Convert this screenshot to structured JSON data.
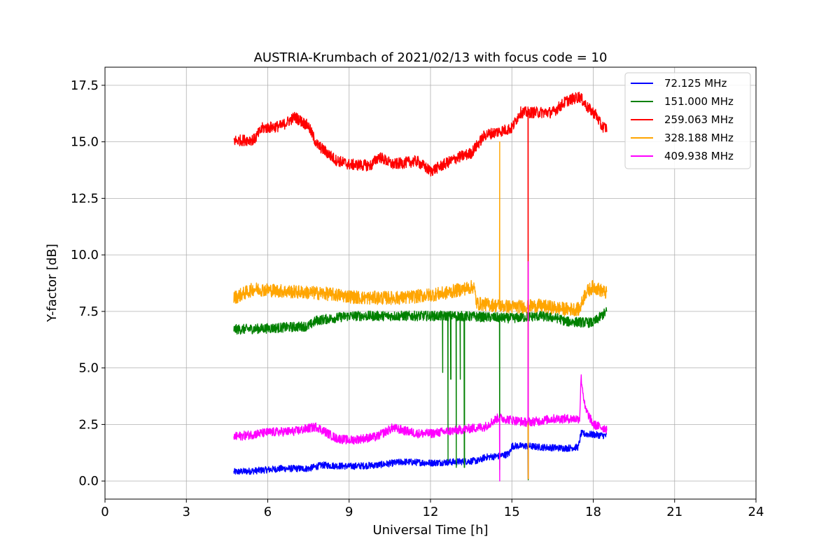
{
  "chart_data": {
    "type": "line",
    "title": "AUSTRIA-Krumbach of 2021/02/13 with focus code = 10",
    "xlabel": "Universal Time [h]",
    "ylabel": "Y-factor [dB]",
    "xlim": [
      0,
      24
    ],
    "ylim": [
      -0.8,
      18.3
    ],
    "xticks": [
      "0",
      "3",
      "6",
      "9",
      "12",
      "15",
      "18",
      "21",
      "24"
    ],
    "yticks": [
      "0.0",
      "2.5",
      "5.0",
      "7.5",
      "10.0",
      "12.5",
      "15.0",
      "17.5"
    ],
    "grid": true,
    "legend_position": "top-right",
    "series": [
      {
        "name": "  72.125 MHz",
        "color": "#0000ff",
        "noise": 0.15,
        "points": [
          [
            4.75,
            0.4
          ],
          [
            5.5,
            0.45
          ],
          [
            6.5,
            0.55
          ],
          [
            7.5,
            0.55
          ],
          [
            8,
            0.7
          ],
          [
            9,
            0.65
          ],
          [
            10,
            0.7
          ],
          [
            11,
            0.85
          ],
          [
            12,
            0.8
          ],
          [
            13,
            0.85
          ],
          [
            13.8,
            0.9
          ],
          [
            14,
            1.05
          ],
          [
            14.5,
            1.1
          ],
          [
            14.9,
            1.2
          ],
          [
            15,
            1.55
          ],
          [
            15.6,
            1.55
          ],
          [
            16,
            1.5
          ],
          [
            17,
            1.45
          ],
          [
            17.45,
            1.5
          ],
          [
            17.55,
            2.1
          ],
          [
            18,
            2.05
          ],
          [
            18.5,
            2.0
          ]
        ],
        "spikes": [
          [
            15.6,
            0.1
          ]
        ]
      },
      {
        "name": "151.000 MHz",
        "color": "#008000",
        "noise": 0.22,
        "points": [
          [
            4.75,
            6.7
          ],
          [
            6,
            6.75
          ],
          [
            7.5,
            6.85
          ],
          [
            7.8,
            7.1
          ],
          [
            9,
            7.3
          ],
          [
            10,
            7.3
          ],
          [
            11,
            7.3
          ],
          [
            12,
            7.3
          ],
          [
            13,
            7.3
          ],
          [
            14,
            7.25
          ],
          [
            15,
            7.2
          ],
          [
            16,
            7.3
          ],
          [
            16.7,
            7.2
          ],
          [
            17,
            7.05
          ],
          [
            18,
            7.0
          ],
          [
            18.5,
            7.5
          ]
        ],
        "spikes": [
          [
            12.65,
            0.9
          ],
          [
            12.75,
            4.5
          ],
          [
            12.95,
            0.6
          ],
          [
            13.1,
            4.5
          ],
          [
            13.25,
            0.6
          ],
          [
            14.55,
            0.5
          ],
          [
            15.6,
            0.05
          ],
          [
            12.45,
            4.8
          ]
        ]
      },
      {
        "name": "259.063 MHz",
        "color": "#ff0000",
        "noise": 0.25,
        "points": [
          [
            4.75,
            15.05
          ],
          [
            5.5,
            15.1
          ],
          [
            5.8,
            15.6
          ],
          [
            6.5,
            15.7
          ],
          [
            7,
            16.1
          ],
          [
            7.5,
            15.7
          ],
          [
            7.8,
            14.9
          ],
          [
            8.5,
            14.2
          ],
          [
            9,
            14.0
          ],
          [
            9.8,
            13.95
          ],
          [
            10.1,
            14.35
          ],
          [
            10.6,
            14.0
          ],
          [
            11.5,
            14.15
          ],
          [
            12,
            13.7
          ],
          [
            13,
            14.3
          ],
          [
            13.5,
            14.5
          ],
          [
            14,
            15.3
          ],
          [
            15,
            15.6
          ],
          [
            15.3,
            16.3
          ],
          [
            16.5,
            16.3
          ],
          [
            17,
            16.8
          ],
          [
            17.5,
            17.0
          ],
          [
            17.8,
            16.5
          ],
          [
            18.1,
            16.2
          ],
          [
            18.3,
            15.7
          ],
          [
            18.5,
            15.6
          ]
        ],
        "spikes": [
          [
            15.6,
            0.1
          ]
        ]
      },
      {
        "name": "328.188 MHz",
        "color": "#ffa500",
        "noise": 0.3,
        "points": [
          [
            4.75,
            8.1
          ],
          [
            5.5,
            8.5
          ],
          [
            6.5,
            8.4
          ],
          [
            8,
            8.3
          ],
          [
            9.5,
            8.1
          ],
          [
            11,
            8.1
          ],
          [
            12.5,
            8.3
          ],
          [
            13.6,
            8.6
          ],
          [
            13.7,
            7.85
          ],
          [
            15,
            7.7
          ],
          [
            16,
            7.75
          ],
          [
            17,
            7.6
          ],
          [
            17.5,
            7.6
          ],
          [
            17.7,
            8.3
          ],
          [
            18,
            8.6
          ],
          [
            18.5,
            8.3
          ]
        ],
        "spikes": [
          [
            14.55,
            15.0
          ],
          [
            15.6,
            0.1
          ]
        ]
      },
      {
        "name": "409.938 MHz",
        "color": "#ff00ff",
        "noise": 0.2,
        "points": [
          [
            4.75,
            1.95
          ],
          [
            6,
            2.15
          ],
          [
            7,
            2.2
          ],
          [
            7.8,
            2.4
          ],
          [
            8.5,
            1.9
          ],
          [
            9,
            1.8
          ],
          [
            10,
            1.95
          ],
          [
            10.6,
            2.35
          ],
          [
            11.5,
            2.1
          ],
          [
            12,
            2.1
          ],
          [
            13,
            2.25
          ],
          [
            14,
            2.4
          ],
          [
            14.5,
            2.8
          ],
          [
            15.5,
            2.6
          ],
          [
            16,
            2.65
          ],
          [
            16.5,
            2.75
          ],
          [
            17.5,
            2.75
          ],
          [
            17.55,
            4.6
          ],
          [
            17.7,
            3.2
          ],
          [
            18,
            2.5
          ],
          [
            18.5,
            2.3
          ]
        ],
        "spikes": [
          [
            14.55,
            0.0
          ],
          [
            15.6,
            9.7
          ]
        ]
      }
    ]
  }
}
